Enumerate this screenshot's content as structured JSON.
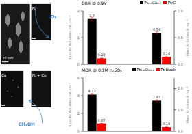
{
  "chart_data": [
    {
      "type": "bar",
      "title": "ORR @ 0.9V",
      "categories": [
        null,
        null
      ],
      "series": [
        {
          "name": "Pt₂.₃Cu₀.₇",
          "color": "black",
          "values": [
            1.7,
            null
          ],
          "errors": [
            0.051,
            null
          ]
        },
        {
          "name": "Pt/C",
          "color": "red",
          "values": [
            0.22,
            null
          ],
          "errors": [
            0.0066,
            null
          ]
        },
        {
          "name": "Pt₂.₃Cu₀.₇",
          "color": "black",
          "axis": "y2",
          "values": [
            null,
            0.59
          ],
          "errors": [
            null,
            0.0177
          ]
        },
        {
          "name": "Pt/C",
          "color": "red",
          "axis": "y2",
          "values": [
            null,
            0.14
          ],
          "errors": [
            null,
            0.0042
          ]
        }
      ],
      "y_label": "Specific Activities mA·cm⁻²",
      "y2_label": "Mass Activities A·mg⁻¹",
      "ylim": [
        0,
        2
      ],
      "yticks": [
        0,
        1,
        2
      ],
      "y2lim": [
        0,
        1
      ],
      "y2ticks": [
        {
          "value": 0,
          "label": "0.0"
        },
        0.5,
        {
          "value": 1,
          "label": "1.0"
        }
      ],
      "legend": "upper right",
      "data_labels": true,
      "tick_labels": "y",
      "grid": false
    },
    {
      "type": "bar",
      "title": "MOR @ 0.1M H₂SO₄",
      "categories": [
        null,
        null
      ],
      "series": [
        {
          "name": "Pt₁.₆Cu₀.₄",
          "color": "black",
          "values": [
            4.12,
            null
          ],
          "errors": [
            0.1236,
            null
          ]
        },
        {
          "name": "Pt black",
          "color": "red",
          "values": [
            0.87,
            null
          ],
          "errors": [
            0.0261,
            null
          ]
        },
        {
          "name": "Pt₁.₆Cu₀.₄",
          "color": "black",
          "axis": "y2",
          "values": [
            null,
            1.43
          ],
          "errors": [
            null,
            0.0429
          ]
        },
        {
          "name": "Pt black",
          "color": "red",
          "axis": "y2",
          "values": [
            null,
            0.19
          ],
          "errors": [
            null,
            0.0057
          ]
        }
      ],
      "y_label": "Specific Activities mA·cm⁻²",
      "y2_label": "Mass Activities A·mg⁻¹",
      "ylim": [
        0,
        6
      ],
      "yticks": [
        0,
        2,
        4,
        6
      ],
      "y2lim": [
        0,
        2.5
      ],
      "y2ticks": [
        {
          "value": 0,
          "label": "0.0"
        },
        {
          "value": 1,
          "label": "1.0"
        },
        {
          "value": 2,
          "label": "2.0"
        }
      ],
      "legend": "upper right",
      "data_labels": true,
      "tick_labels": "y",
      "grid": false
    },
    {
      "type": "image",
      "annotations": [
        "20 nm",
        "Pt",
        "Cu",
        "Pt + Cu",
        "O₂",
        "CH₃OH"
      ]
    }
  ]
}
